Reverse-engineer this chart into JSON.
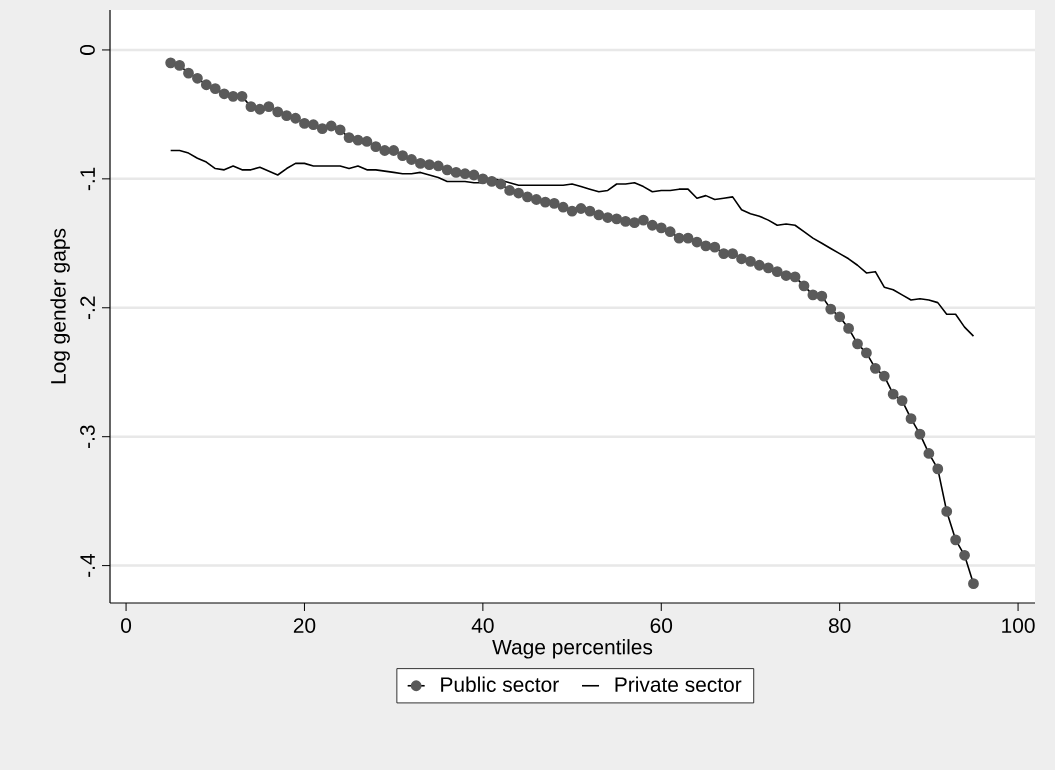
{
  "chart_data": {
    "type": "line",
    "xlabel": "Wage percentiles",
    "ylabel": "Log gender gaps",
    "x": [
      5,
      6,
      7,
      8,
      9,
      10,
      11,
      12,
      13,
      14,
      15,
      16,
      17,
      18,
      19,
      20,
      21,
      22,
      23,
      24,
      25,
      26,
      27,
      28,
      29,
      30,
      31,
      32,
      33,
      34,
      35,
      36,
      37,
      38,
      39,
      40,
      41,
      42,
      43,
      44,
      45,
      46,
      47,
      48,
      49,
      50,
      51,
      52,
      53,
      54,
      55,
      56,
      57,
      58,
      59,
      60,
      61,
      62,
      63,
      64,
      65,
      66,
      67,
      68,
      69,
      70,
      71,
      72,
      73,
      74,
      75,
      76,
      77,
      78,
      79,
      80,
      81,
      82,
      83,
      84,
      85,
      86,
      87,
      88,
      89,
      90,
      91,
      92,
      93,
      94,
      95
    ],
    "series": [
      {
        "name": "Public sector",
        "color": "#5a5a5a",
        "marker": "circle",
        "values": [
          -0.01,
          -0.012,
          -0.018,
          -0.022,
          -0.027,
          -0.03,
          -0.034,
          -0.036,
          -0.036,
          -0.044,
          -0.046,
          -0.044,
          -0.048,
          -0.051,
          -0.053,
          -0.057,
          -0.058,
          -0.061,
          -0.059,
          -0.062,
          -0.068,
          -0.07,
          -0.071,
          -0.075,
          -0.078,
          -0.078,
          -0.082,
          -0.085,
          -0.088,
          -0.089,
          -0.09,
          -0.093,
          -0.095,
          -0.096,
          -0.097,
          -0.1,
          -0.102,
          -0.104,
          -0.109,
          -0.111,
          -0.114,
          -0.116,
          -0.118,
          -0.119,
          -0.122,
          -0.125,
          -0.123,
          -0.125,
          -0.128,
          -0.13,
          -0.131,
          -0.133,
          -0.134,
          -0.132,
          -0.136,
          -0.138,
          -0.141,
          -0.146,
          -0.146,
          -0.149,
          -0.152,
          -0.153,
          -0.158,
          -0.158,
          -0.162,
          -0.164,
          -0.167,
          -0.169,
          -0.172,
          -0.175,
          -0.176,
          -0.183,
          -0.19,
          -0.191,
          -0.201,
          -0.207,
          -0.216,
          -0.228,
          -0.235,
          -0.247,
          -0.253,
          -0.267,
          -0.272,
          -0.286,
          -0.298,
          -0.313,
          -0.325,
          -0.358,
          -0.38,
          -0.392,
          -0.414
        ]
      },
      {
        "name": "Private sector",
        "color": "#000000",
        "marker": "none",
        "values": [
          -0.078,
          -0.078,
          -0.08,
          -0.084,
          -0.087,
          -0.092,
          -0.093,
          -0.09,
          -0.093,
          -0.093,
          -0.091,
          -0.094,
          -0.097,
          -0.092,
          -0.088,
          -0.088,
          -0.09,
          -0.09,
          -0.09,
          -0.09,
          -0.092,
          -0.09,
          -0.093,
          -0.093,
          -0.094,
          -0.095,
          -0.096,
          -0.096,
          -0.095,
          -0.097,
          -0.099,
          -0.102,
          -0.102,
          -0.102,
          -0.103,
          -0.103,
          -0.1,
          -0.101,
          -0.103,
          -0.105,
          -0.105,
          -0.105,
          -0.105,
          -0.105,
          -0.105,
          -0.104,
          -0.106,
          -0.108,
          -0.11,
          -0.109,
          -0.104,
          -0.104,
          -0.103,
          -0.106,
          -0.11,
          -0.109,
          -0.109,
          -0.108,
          -0.108,
          -0.115,
          -0.113,
          -0.116,
          -0.115,
          -0.114,
          -0.124,
          -0.127,
          -0.129,
          -0.132,
          -0.136,
          -0.135,
          -0.136,
          -0.141,
          -0.146,
          -0.15,
          -0.154,
          -0.158,
          -0.162,
          -0.167,
          -0.173,
          -0.172,
          -0.184,
          -0.186,
          -0.19,
          -0.194,
          -0.193,
          -0.194,
          -0.196,
          -0.205,
          -0.205,
          -0.215,
          -0.222
        ]
      }
    ],
    "xlim": [
      -1.8,
      101.9
    ],
    "ylim": [
      -0.429,
      0.031
    ],
    "xticks": [
      0,
      20,
      40,
      60,
      80,
      100
    ],
    "yticks": [
      0,
      {
        "value": -0.1,
        "label": "-.1"
      },
      {
        "value": -0.2,
        "label": "-.2"
      },
      {
        "value": -0.3,
        "label": "-.3"
      },
      {
        "value": -0.4,
        "label": "-.4"
      }
    ],
    "grid": "y",
    "legend": "bottom"
  }
}
